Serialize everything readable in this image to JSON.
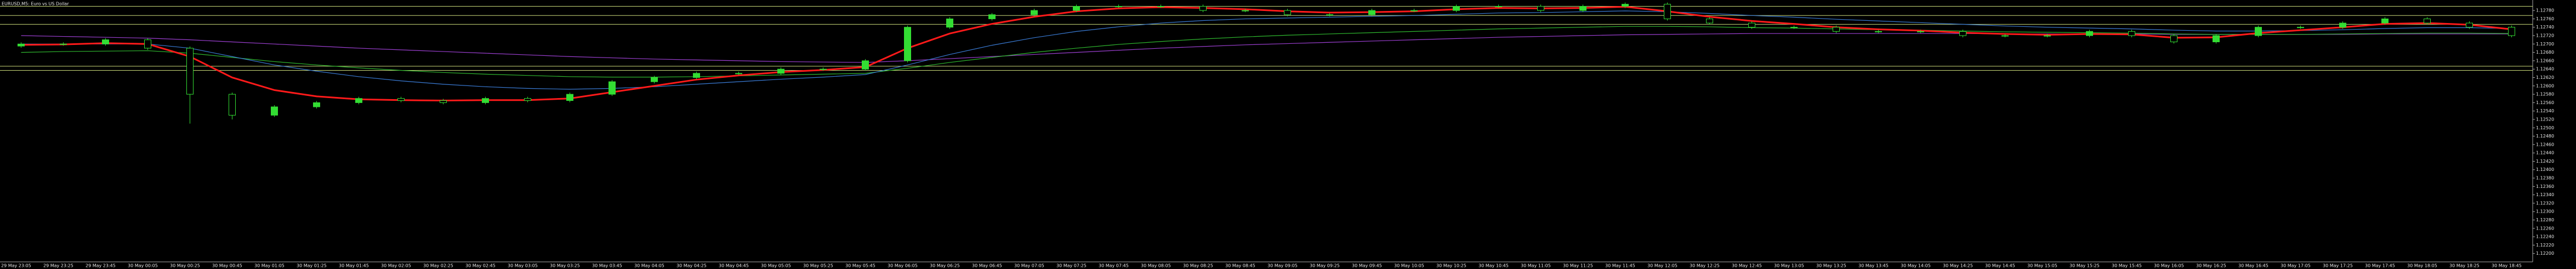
{
  "chart_data": {
    "type": "candlestick",
    "title": "EURUSD,M5: Euro vs US Dollar",
    "up_color": "#33dd33",
    "down_color": "#000000",
    "wick_color": "#33dd33",
    "level_color": "#c8d878",
    "categories": [
      "29 May 23:05",
      "29 May 23:25",
      "29 May 23:45",
      "30 May 00:05",
      "30 May 00:25",
      "30 May 00:45",
      "30 May 01:05",
      "30 May 01:25",
      "30 May 01:45",
      "30 May 02:05",
      "30 May 02:25",
      "30 May 02:45",
      "30 May 03:05",
      "30 May 03:25",
      "30 May 03:45",
      "30 May 04:05",
      "30 May 04:25",
      "30 May 04:45",
      "30 May 05:05",
      "30 May 05:25",
      "30 May 05:45",
      "30 May 06:05",
      "30 May 06:25",
      "30 May 06:45",
      "30 May 07:05",
      "30 May 07:25",
      "30 May 07:45",
      "30 May 08:05",
      "30 May 08:25",
      "30 May 08:45",
      "30 May 09:05",
      "30 May 09:25",
      "30 May 09:45",
      "30 May 10:05",
      "30 May 10:25",
      "30 May 10:45",
      "30 May 11:05",
      "30 May 11:25",
      "30 May 11:45",
      "30 May 12:05",
      "30 May 12:25",
      "30 May 12:45",
      "30 May 13:05",
      "30 May 13:25",
      "30 May 13:45",
      "30 May 14:05",
      "30 May 14:25",
      "30 May 14:45",
      "30 May 15:05",
      "30 May 15:25",
      "30 May 15:45",
      "30 May 16:05",
      "30 May 16:25",
      "30 May 16:45",
      "30 May 17:05",
      "30 May 17:25",
      "30 May 17:45",
      "30 May 18:05",
      "30 May 18:25",
      "30 May 18:45"
    ],
    "open": [
      1.12695,
      1.127,
      1.127,
      1.1271,
      1.1269,
      1.1258,
      1.1253,
      1.1255,
      1.1256,
      1.1257,
      1.12565,
      1.1256,
      1.1257,
      1.12565,
      1.1258,
      1.1261,
      1.1262,
      1.1263,
      1.1263,
      1.1264,
      1.1264,
      1.1266,
      1.1274,
      1.1276,
      1.1277,
      1.1278,
      1.1279,
      1.1279,
      1.1279,
      1.1278,
      1.1278,
      1.1277,
      1.1277,
      1.1278,
      1.1278,
      1.1279,
      1.1279,
      1.1278,
      1.1279,
      1.12795,
      1.1276,
      1.1275,
      1.1274,
      1.1274,
      1.1273,
      1.1273,
      1.1273,
      1.1272,
      1.1272,
      1.1272,
      1.1273,
      1.1272,
      1.12705,
      1.1272,
      1.1274,
      1.1274,
      1.1275,
      1.1276,
      1.1275,
      1.1274
    ],
    "high": [
      1.12704,
      1.12704,
      1.12714,
      1.12714,
      1.12694,
      1.12584,
      1.12554,
      1.12564,
      1.12574,
      1.12574,
      1.12569,
      1.12574,
      1.12574,
      1.12584,
      1.12614,
      1.12624,
      1.12634,
      1.12634,
      1.12644,
      1.12644,
      1.12664,
      1.12744,
      1.12764,
      1.12774,
      1.12784,
      1.12794,
      1.12794,
      1.12794,
      1.12794,
      1.12784,
      1.12784,
      1.12774,
      1.12784,
      1.12784,
      1.12794,
      1.12794,
      1.12794,
      1.12794,
      1.12799,
      1.12799,
      1.12764,
      1.12754,
      1.12744,
      1.12744,
      1.12734,
      1.12734,
      1.12734,
      1.12724,
      1.12724,
      1.12734,
      1.12734,
      1.12724,
      1.12724,
      1.12744,
      1.12744,
      1.12754,
      1.12764,
      1.12764,
      1.12754,
      1.12744
    ],
    "low": [
      1.12691,
      1.12696,
      1.12696,
      1.12686,
      1.1251,
      1.1252,
      1.12526,
      1.12546,
      1.12556,
      1.12561,
      1.12556,
      1.12556,
      1.12561,
      1.12561,
      1.12576,
      1.12606,
      1.12616,
      1.12626,
      1.12626,
      1.12636,
      1.12636,
      1.12656,
      1.12736,
      1.12756,
      1.12766,
      1.12776,
      1.12786,
      1.12786,
      1.12776,
      1.12776,
      1.12766,
      1.12766,
      1.12766,
      1.12776,
      1.12776,
      1.12786,
      1.12776,
      1.12776,
      1.12786,
      1.12756,
      1.12746,
      1.12736,
      1.12736,
      1.12726,
      1.12726,
      1.12726,
      1.12716,
      1.12716,
      1.12716,
      1.12716,
      1.12716,
      1.12701,
      1.12701,
      1.12716,
      1.12736,
      1.12736,
      1.12746,
      1.12746,
      1.12736,
      1.12716
    ],
    "close": [
      1.127,
      1.127,
      1.1271,
      1.1269,
      1.1258,
      1.1253,
      1.1255,
      1.1256,
      1.1257,
      1.12565,
      1.1256,
      1.1257,
      1.12565,
      1.1258,
      1.1261,
      1.1262,
      1.1263,
      1.1263,
      1.1264,
      1.1264,
      1.1266,
      1.1274,
      1.1276,
      1.1277,
      1.1278,
      1.1279,
      1.1279,
      1.1279,
      1.1278,
      1.1278,
      1.1277,
      1.1277,
      1.1278,
      1.1278,
      1.1279,
      1.1279,
      1.1278,
      1.1279,
      1.12795,
      1.1276,
      1.1275,
      1.1274,
      1.1274,
      1.1273,
      1.1273,
      1.1273,
      1.1272,
      1.1272,
      1.1272,
      1.1273,
      1.1272,
      1.12705,
      1.1272,
      1.1274,
      1.1274,
      1.1275,
      1.1276,
      1.1275,
      1.1274,
      1.1272
    ],
    "series": [
      {
        "color": "#9b3fd0",
        "values": [
          1.1272,
          1.12718,
          1.12716,
          1.12714,
          1.1271,
          1.12705,
          1.127,
          1.12695,
          1.1269,
          1.12686,
          1.12682,
          1.12678,
          1.12674,
          1.1267,
          1.12667,
          1.12664,
          1.12662,
          1.1266,
          1.12658,
          1.12657,
          1.12656,
          1.1266,
          1.12665,
          1.1267,
          1.12675,
          1.1268,
          1.12685,
          1.1269,
          1.12694,
          1.12698,
          1.12701,
          1.12704,
          1.12707,
          1.1271,
          1.12713,
          1.12716,
          1.12718,
          1.1272,
          1.12722,
          1.12723,
          1.12724,
          1.12725,
          1.12725,
          1.12725,
          1.12725,
          1.12725,
          1.12725,
          1.12724,
          1.12724,
          1.12724,
          1.12724,
          1.12723,
          1.12723,
          1.12723,
          1.12723,
          1.12723,
          1.12724,
          1.12724,
          1.12724,
          1.12724
        ]
      },
      {
        "color": "#2fb82f",
        "values": [
          1.1268,
          1.12682,
          1.12683,
          1.12684,
          1.12678,
          1.12668,
          1.12658,
          1.1265,
          1.12643,
          1.12637,
          1.12632,
          1.12628,
          1.12625,
          1.12622,
          1.12621,
          1.12621,
          1.12622,
          1.12624,
          1.12626,
          1.12628,
          1.1263,
          1.12642,
          1.12656,
          1.12668,
          1.1268,
          1.1269,
          1.12699,
          1.12706,
          1.12712,
          1.12717,
          1.12721,
          1.12724,
          1.12727,
          1.1273,
          1.12733,
          1.12736,
          1.12738,
          1.1274,
          1.12742,
          1.12742,
          1.12741,
          1.12739,
          1.12738,
          1.12736,
          1.12734,
          1.12733,
          1.12731,
          1.12729,
          1.12728,
          1.12727,
          1.12726,
          1.12724,
          1.12723,
          1.12723,
          1.12723,
          1.12724,
          1.12725,
          1.12726,
          1.12726,
          1.12725
        ]
      },
      {
        "color": "#3a7bd5",
        "values": [
          1.127,
          1.127,
          1.127,
          1.127,
          1.1269,
          1.1267,
          1.1265,
          1.12635,
          1.12622,
          1.12612,
          1.12604,
          1.12598,
          1.12594,
          1.12592,
          1.12594,
          1.12598,
          1.12604,
          1.1261,
          1.12616,
          1.12621,
          1.12627,
          1.1265,
          1.12675,
          1.12697,
          1.12715,
          1.1273,
          1.12741,
          1.1275,
          1.12756,
          1.1276,
          1.12762,
          1.12764,
          1.12766,
          1.12768,
          1.12771,
          1.12774,
          1.12775,
          1.12777,
          1.12779,
          1.12777,
          1.12773,
          1.12768,
          1.12764,
          1.12759,
          1.12755,
          1.12751,
          1.12747,
          1.12743,
          1.1274,
          1.12738,
          1.12736,
          1.12733,
          1.12731,
          1.12731,
          1.12732,
          1.12734,
          1.12737,
          1.12739,
          1.12739,
          1.12737
        ]
      },
      {
        "color": "#ff1a1a",
        "values": [
          1.12698,
          1.12699,
          1.12702,
          1.127,
          1.1267,
          1.1262,
          1.1259,
          1.12575,
          1.12568,
          1.12566,
          1.12565,
          1.12566,
          1.12566,
          1.1257,
          1.12585,
          1.126,
          1.12615,
          1.12625,
          1.12633,
          1.12638,
          1.12645,
          1.1269,
          1.12725,
          1.12748,
          1.12765,
          1.12778,
          1.12785,
          1.12788,
          1.12786,
          1.12783,
          1.12778,
          1.12775,
          1.12776,
          1.12778,
          1.12783,
          1.12786,
          1.12785,
          1.12786,
          1.12789,
          1.12778,
          1.12765,
          1.12755,
          1.12748,
          1.1274,
          1.12735,
          1.12732,
          1.12727,
          1.12724,
          1.12722,
          1.12724,
          1.12723,
          1.12715,
          1.12716,
          1.12726,
          1.12733,
          1.1274,
          1.12748,
          1.1275,
          1.12746,
          1.12735
        ]
      }
    ],
    "levels": [
      1.12747,
      1.12647,
      1.12637,
      1.1279,
      1.12768
    ],
    "ylim": [
      1.1218,
      1.12805
    ],
    "yticks": [
      {
        "value": 1.122,
        "label": "1.12200"
      },
      {
        "value": 1.1222,
        "label": "1.12220"
      },
      {
        "value": 1.1224,
        "label": "1.12240"
      },
      {
        "value": 1.1226,
        "label": "1.12260"
      },
      {
        "value": 1.1228,
        "label": "1.12280"
      },
      {
        "value": 1.123,
        "label": "1.12300"
      },
      {
        "value": 1.1232,
        "label": "1.12320"
      },
      {
        "value": 1.1234,
        "label": "1.12340"
      },
      {
        "value": 1.1236,
        "label": "1.12360"
      },
      {
        "value": 1.1238,
        "label": "1.12380"
      },
      {
        "value": 1.124,
        "label": "1.12400"
      },
      {
        "value": 1.1242,
        "label": "1.12420"
      },
      {
        "value": 1.1244,
        "label": "1.12440"
      },
      {
        "value": 1.1246,
        "label": "1.12460"
      },
      {
        "value": 1.1248,
        "label": "1.12480"
      },
      {
        "value": 1.125,
        "label": "1.12500"
      },
      {
        "value": 1.1252,
        "label": "1.12520"
      },
      {
        "value": 1.1254,
        "label": "1.12540"
      },
      {
        "value": 1.1256,
        "label": "1.12560"
      },
      {
        "value": 1.1258,
        "label": "1.12580"
      },
      {
        "value": 1.126,
        "label": "1.12600"
      },
      {
        "value": 1.1262,
        "label": "1.12620"
      },
      {
        "value": 1.1264,
        "label": "1.12640"
      },
      {
        "value": 1.1266,
        "label": "1.12660"
      },
      {
        "value": 1.1268,
        "label": "1.12680"
      },
      {
        "value": 1.127,
        "label": "1.12700"
      },
      {
        "value": 1.1272,
        "label": "1.12720"
      },
      {
        "value": 1.1274,
        "label": "1.12740"
      },
      {
        "value": 1.1276,
        "label": "1.12760"
      },
      {
        "value": 1.1278,
        "label": "1.12780"
      }
    ]
  }
}
